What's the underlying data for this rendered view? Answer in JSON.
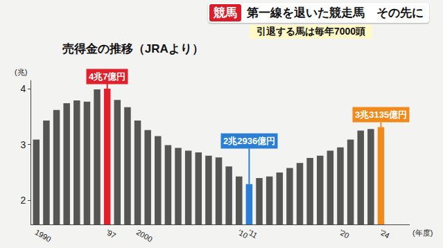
{
  "header": {
    "tag": "競馬",
    "headline": "第一線を退いた競走馬　その先に",
    "subline": "引退する馬は毎年7000頭"
  },
  "chart_data": {
    "type": "bar",
    "title": "売得金の推移（JRAより）",
    "y_unit_label": "(兆)",
    "x_unit_label": "(年度)",
    "categories": [
      "1990",
      null,
      null,
      null,
      null,
      null,
      null,
      "'97",
      null,
      null,
      "2000",
      null,
      null,
      null,
      null,
      null,
      null,
      null,
      null,
      null,
      "'10",
      "'11",
      null,
      null,
      null,
      null,
      null,
      null,
      null,
      null,
      "'20",
      null,
      null,
      null,
      "'24"
    ],
    "values": [
      3.09,
      3.43,
      3.62,
      3.74,
      3.79,
      3.77,
      3.99,
      4.0007,
      3.8,
      3.67,
      3.43,
      3.26,
      3.15,
      2.99,
      2.94,
      2.89,
      2.86,
      2.8,
      2.77,
      2.61,
      2.43,
      2.2936,
      2.4,
      2.43,
      2.5,
      2.58,
      2.67,
      2.76,
      2.8,
      2.89,
      2.95,
      3.09,
      3.25,
      3.28,
      3.3135
    ],
    "colors": [
      "#555555",
      "#555555",
      "#555555",
      "#555555",
      "#555555",
      "#555555",
      "#555555",
      "#e0202a",
      "#555555",
      "#555555",
      "#555555",
      "#555555",
      "#555555",
      "#555555",
      "#555555",
      "#555555",
      "#555555",
      "#555555",
      "#555555",
      "#555555",
      "#555555",
      "#2a7fd4",
      "#555555",
      "#555555",
      "#555555",
      "#555555",
      "#555555",
      "#555555",
      "#555555",
      "#555555",
      "#555555",
      "#555555",
      "#555555",
      "#555555",
      "#f08a1c"
    ],
    "annotations": [
      {
        "x": "'97",
        "text": "4兆7億円"
      },
      {
        "x": "'11",
        "text": "2兆2936億円"
      },
      {
        "x": "'24",
        "text": "3兆3135億円"
      }
    ],
    "ylim": [
      1.57,
      4.15
    ],
    "yticks": [
      2,
      3,
      4
    ],
    "grid": false
  }
}
